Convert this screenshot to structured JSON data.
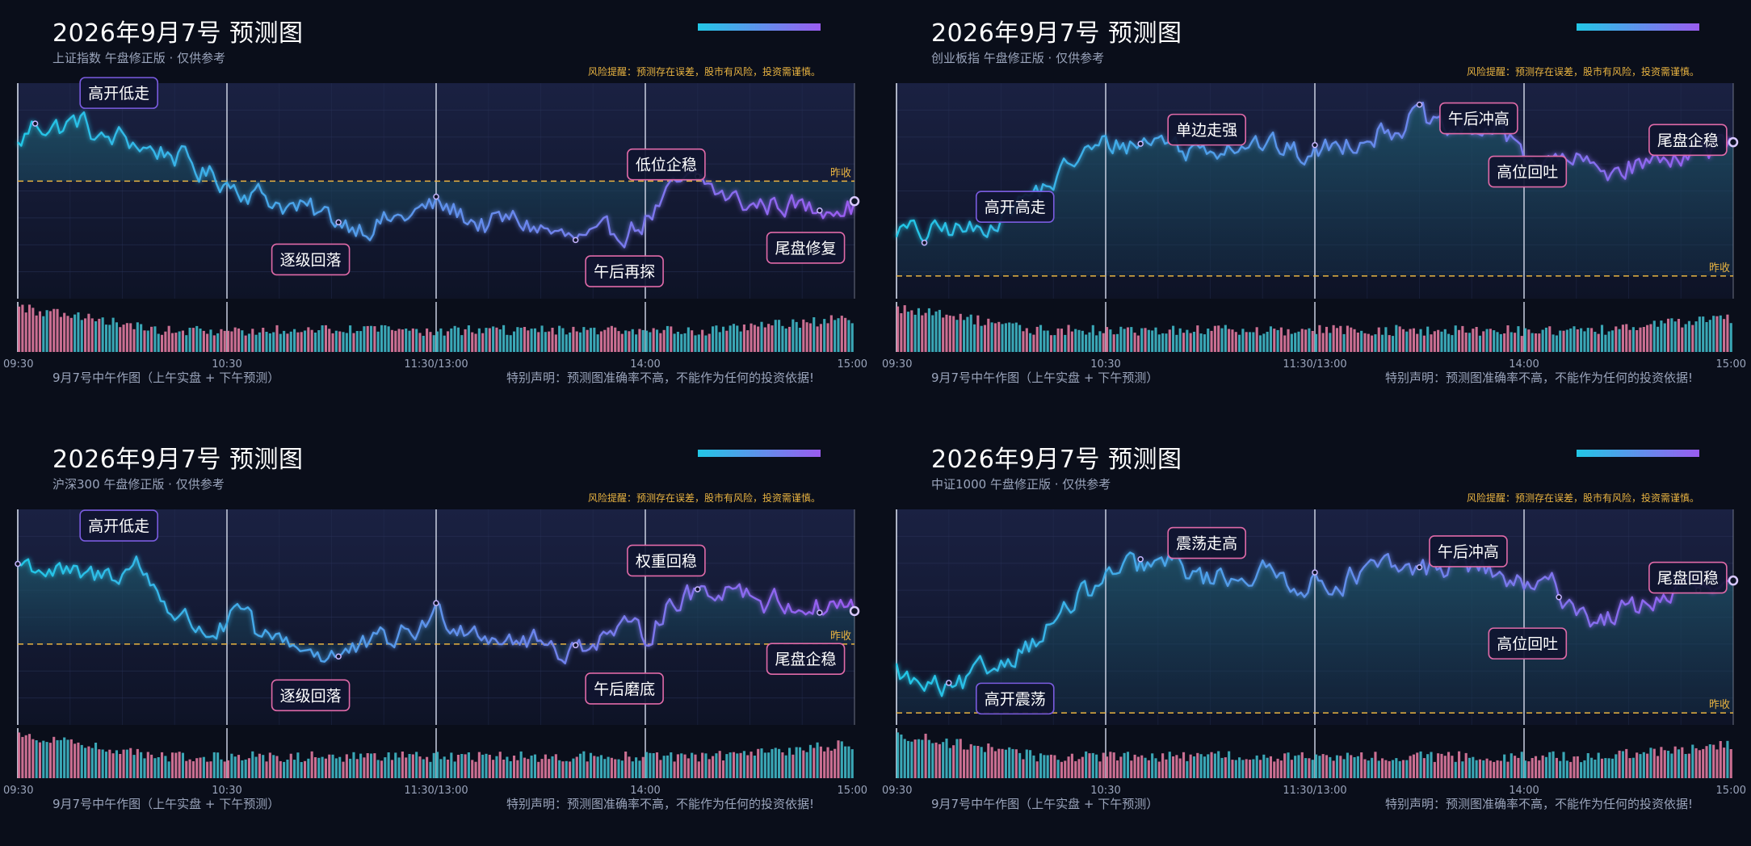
{
  "common": {
    "title": "2026年9月7号 预测图",
    "risk_note": "风险提醒：预测存在误差，股市有风险，投资需谨慎。",
    "footer_left": "9月7号中午作图（上午实盘 + 下午预测）",
    "footer_right": "特别声明：预测图准确率不高，不能作为任何的投资依据!",
    "ref_label": "昨收",
    "x_ticks": [
      "09:30",
      "10:30",
      "11:30/13:00",
      "14:00",
      "15:00"
    ]
  },
  "colors": {
    "background": "#0a0e1a",
    "plot_background": "#141a33",
    "line_start": "#22c7e6",
    "line_end": "#9a5cf0",
    "reference_line": "#e8b341",
    "volume_up": "#e07aa0",
    "volume_down": "#3fb8c8",
    "annotation_border_pink": "#e06aa8",
    "annotation_border_purple": "#7a5ce0",
    "accent_gradient": [
      "#22c7e6",
      "#9a5cf0"
    ]
  },
  "chart_data": [
    {
      "type": "line",
      "subtitle": "上证指数 午盘修正版 · 仅供参考",
      "x_ticks": [
        "09:30",
        "10:30",
        "11:30/13:00",
        "14:00",
        "15:00"
      ],
      "x_range": [
        0,
        240
      ],
      "y_range": [
        -1.2,
        1.0
      ],
      "reference": {
        "label": "昨收",
        "value": 0
      },
      "anchors": [
        [
          0,
          0.35
        ],
        [
          5,
          0.6
        ],
        [
          12,
          0.55
        ],
        [
          18,
          0.62
        ],
        [
          24,
          0.4
        ],
        [
          30,
          0.45
        ],
        [
          38,
          0.32
        ],
        [
          44,
          0.3
        ],
        [
          52,
          0.1
        ],
        [
          60,
          0.0
        ],
        [
          70,
          -0.15
        ],
        [
          80,
          -0.28
        ],
        [
          92,
          -0.4
        ],
        [
          100,
          -0.45
        ],
        [
          110,
          -0.38
        ],
        [
          120,
          -0.25
        ],
        [
          126,
          -0.32
        ],
        [
          134,
          -0.45
        ],
        [
          142,
          -0.4
        ],
        [
          150,
          -0.48
        ],
        [
          158,
          -0.6
        ],
        [
          166,
          -0.62
        ],
        [
          172,
          -0.52
        ],
        [
          178,
          -0.45
        ],
        [
          184,
          -0.25
        ],
        [
          190,
          -0.05
        ],
        [
          196,
          0.0
        ],
        [
          202,
          -0.15
        ],
        [
          210,
          -0.25
        ],
        [
          220,
          -0.22
        ],
        [
          228,
          -0.3
        ],
        [
          234,
          -0.2
        ],
        [
          240,
          -0.25
        ]
      ],
      "markers": [
        5,
        92,
        120,
        160,
        195,
        230
      ],
      "annotations": [
        {
          "label": "高开低走",
          "x": 29,
          "y": 0.9,
          "style": "purple"
        },
        {
          "label": "逐级回落",
          "x": 84,
          "y": -0.8,
          "style": "pink"
        },
        {
          "label": "低位企稳",
          "x": 186,
          "y": 0.17,
          "style": "pink"
        },
        {
          "label": "午后再探",
          "x": 174,
          "y": -0.92,
          "style": "pink"
        },
        {
          "label": "尾盘修复",
          "x": 226,
          "y": -0.68,
          "style": "pink"
        }
      ]
    },
    {
      "type": "line",
      "subtitle": "创业板指 午盘修正版 · 仅供参考",
      "x_ticks": [
        "09:30",
        "10:30",
        "11:30/13:00",
        "14:00",
        "15:00"
      ],
      "x_range": [
        0,
        240
      ],
      "y_range": [
        -0.2,
        1.7
      ],
      "reference": {
        "label": "昨收",
        "value": 0
      },
      "anchors": [
        [
          0,
          0.42
        ],
        [
          8,
          0.35
        ],
        [
          16,
          0.42
        ],
        [
          24,
          0.38
        ],
        [
          30,
          0.58
        ],
        [
          38,
          0.7
        ],
        [
          46,
          0.85
        ],
        [
          52,
          1.05
        ],
        [
          60,
          1.15
        ],
        [
          70,
          1.18
        ],
        [
          78,
          1.22
        ],
        [
          82,
          1.1
        ],
        [
          90,
          1.15
        ],
        [
          100,
          1.2
        ],
        [
          110,
          1.12
        ],
        [
          118,
          1.05
        ],
        [
          126,
          1.15
        ],
        [
          134,
          1.25
        ],
        [
          142,
          1.3
        ],
        [
          150,
          1.42
        ],
        [
          156,
          1.25
        ],
        [
          164,
          1.28
        ],
        [
          172,
          1.3
        ],
        [
          180,
          1.1
        ],
        [
          186,
          0.98
        ],
        [
          194,
          1.02
        ],
        [
          202,
          0.92
        ],
        [
          210,
          0.98
        ],
        [
          218,
          1.0
        ],
        [
          224,
          1.1
        ],
        [
          232,
          1.12
        ],
        [
          240,
          1.12
        ]
      ],
      "markers": [
        8,
        70,
        120,
        150,
        230
      ],
      "annotations": [
        {
          "label": "高开高走",
          "x": 34,
          "y": 0.61,
          "style": "purple"
        },
        {
          "label": "单边走强",
          "x": 89,
          "y": 1.29,
          "style": "pink"
        },
        {
          "label": "午后冲高",
          "x": 167,
          "y": 1.39,
          "style": "pink"
        },
        {
          "label": "高位回吐",
          "x": 181,
          "y": 0.92,
          "style": "pink"
        },
        {
          "label": "尾盘企稳",
          "x": 227,
          "y": 1.2,
          "style": "pink"
        }
      ]
    },
    {
      "type": "line",
      "subtitle": "沪深300 午盘修正版 · 仅供参考",
      "x_ticks": [
        "09:30",
        "10:30",
        "11:30/13:00",
        "14:00",
        "15:00"
      ],
      "x_range": [
        0,
        240
      ],
      "y_range": [
        -0.6,
        1.0
      ],
      "reference": {
        "label": "昨收",
        "value": 0
      },
      "anchors": [
        [
          0,
          0.6
        ],
        [
          6,
          0.58
        ],
        [
          12,
          0.52
        ],
        [
          18,
          0.48
        ],
        [
          24,
          0.5
        ],
        [
          30,
          0.55
        ],
        [
          34,
          0.6
        ],
        [
          40,
          0.4
        ],
        [
          46,
          0.2
        ],
        [
          54,
          0.1
        ],
        [
          60,
          0.12
        ],
        [
          64,
          0.25
        ],
        [
          70,
          0.0
        ],
        [
          76,
          0.05
        ],
        [
          84,
          -0.05
        ],
        [
          92,
          -0.08
        ],
        [
          98,
          -0.05
        ],
        [
          106,
          0.02
        ],
        [
          114,
          0.1
        ],
        [
          120,
          0.22
        ],
        [
          128,
          0.15
        ],
        [
          134,
          0.1
        ],
        [
          142,
          0.05
        ],
        [
          150,
          0.0
        ],
        [
          158,
          -0.05
        ],
        [
          166,
          0.05
        ],
        [
          172,
          0.1
        ],
        [
          180,
          0.05
        ],
        [
          186,
          0.3
        ],
        [
          192,
          0.35
        ],
        [
          198,
          0.4
        ],
        [
          206,
          0.45
        ],
        [
          214,
          0.32
        ],
        [
          222,
          0.3
        ],
        [
          230,
          0.28
        ],
        [
          236,
          0.3
        ],
        [
          240,
          0.27
        ]
      ],
      "markers": [
        0,
        92,
        120,
        160,
        195,
        230
      ],
      "annotations": [
        {
          "label": "高开低走",
          "x": 29,
          "y": 0.88,
          "style": "purple"
        },
        {
          "label": "逐级回落",
          "x": 84,
          "y": -0.38,
          "style": "pink"
        },
        {
          "label": "权重回稳",
          "x": 186,
          "y": 0.62,
          "style": "pink"
        },
        {
          "label": "午后磨底",
          "x": 174,
          "y": -0.33,
          "style": "pink"
        },
        {
          "label": "尾盘企稳",
          "x": 226,
          "y": -0.11,
          "style": "pink"
        }
      ]
    },
    {
      "type": "line",
      "subtitle": "中证1000 午盘修正版 · 仅供参考",
      "x_ticks": [
        "09:30",
        "10:30",
        "11:30/13:00",
        "14:00",
        "15:00"
      ],
      "x_range": [
        0,
        240
      ],
      "y_range": [
        -0.1,
        1.7
      ],
      "reference": {
        "label": "昨收",
        "value": 0
      },
      "anchors": [
        [
          0,
          0.35
        ],
        [
          6,
          0.22
        ],
        [
          12,
          0.2
        ],
        [
          16,
          0.15
        ],
        [
          22,
          0.28
        ],
        [
          28,
          0.38
        ],
        [
          34,
          0.52
        ],
        [
          40,
          0.62
        ],
        [
          46,
          0.78
        ],
        [
          52,
          0.95
        ],
        [
          58,
          1.05
        ],
        [
          64,
          1.18
        ],
        [
          72,
          1.22
        ],
        [
          80,
          1.25
        ],
        [
          88,
          1.12
        ],
        [
          96,
          1.15
        ],
        [
          104,
          1.18
        ],
        [
          112,
          1.12
        ],
        [
          120,
          1.08
        ],
        [
          126,
          1.1
        ],
        [
          132,
          1.15
        ],
        [
          140,
          1.2
        ],
        [
          148,
          1.18
        ],
        [
          156,
          1.22
        ],
        [
          162,
          1.25
        ],
        [
          168,
          1.2
        ],
        [
          176,
          1.1
        ],
        [
          182,
          1.02
        ],
        [
          188,
          1.05
        ],
        [
          194,
          0.92
        ],
        [
          200,
          0.78
        ],
        [
          206,
          0.82
        ],
        [
          212,
          0.88
        ],
        [
          220,
          0.98
        ],
        [
          228,
          1.05
        ],
        [
          234,
          1.02
        ],
        [
          240,
          1.0
        ]
      ],
      "markers": [
        15,
        70,
        120,
        150,
        190,
        230
      ],
      "annotations": [
        {
          "label": "高开震荡",
          "x": 34,
          "y": 0.12,
          "style": "purple"
        },
        {
          "label": "震荡走高",
          "x": 89,
          "y": 1.42,
          "style": "pink"
        },
        {
          "label": "午后冲高",
          "x": 164,
          "y": 1.35,
          "style": "pink"
        },
        {
          "label": "高位回吐",
          "x": 181,
          "y": 0.58,
          "style": "pink"
        },
        {
          "label": "尾盘回稳",
          "x": 227,
          "y": 1.13,
          "style": "pink"
        }
      ]
    }
  ]
}
